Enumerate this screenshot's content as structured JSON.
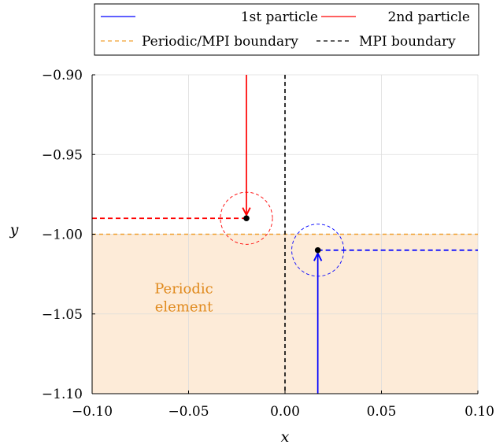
{
  "chart_data": {
    "type": "line",
    "xlabel": "x",
    "ylabel": "y",
    "xlim": [
      -0.1,
      0.1
    ],
    "ylim": [
      -1.1,
      -0.9
    ],
    "xticks": [
      -0.1,
      -0.05,
      0.0,
      0.05,
      0.1
    ],
    "yticks": [
      -1.1,
      -1.05,
      -1.0,
      -0.95,
      -0.9
    ],
    "xtick_labels": [
      "−0.10",
      "−0.05",
      "0.00",
      "0.05",
      "0.10"
    ],
    "ytick_labels": [
      "−1.10",
      "−1.05",
      "−1.00",
      "−0.95",
      "−0.90"
    ],
    "grid": true,
    "legend": {
      "placement": "top",
      "entries": [
        {
          "label": "1st particle",
          "color": "#0000ff",
          "style": "solid"
        },
        {
          "label": "2nd particle",
          "color": "#ff0000",
          "style": "solid"
        },
        {
          "label": "Periodic/MPI boundary",
          "color": "#f0a030",
          "style": "dashed"
        },
        {
          "label": "MPI boundary",
          "color": "#000000",
          "style": "dashed"
        }
      ]
    },
    "shaded_region": {
      "x": [
        -0.1,
        0.1
      ],
      "y": [
        -1.1,
        -1.0
      ],
      "color": "#fdebd8"
    },
    "annotation": {
      "lines": [
        "Periodic",
        "element"
      ],
      "x": -0.05,
      "y": -1.04,
      "color": "#e08a1e"
    },
    "boundaries": [
      {
        "name": "Periodic/MPI boundary",
        "orientation": "horizontal",
        "value": -1.0,
        "color": "#f0a030",
        "style": "dashed"
      },
      {
        "name": "MPI boundary",
        "orientation": "vertical",
        "value": 0.0,
        "color": "#000000",
        "style": "dashed"
      }
    ],
    "particles": [
      {
        "name": "1st particle",
        "color": "#0000ff",
        "position": [
          0.017,
          -1.01
        ],
        "radius": 0.0135,
        "trajectory": {
          "x": [
            0.017,
            0.017
          ],
          "y": [
            -1.1,
            -1.012
          ]
        },
        "projection": {
          "x": [
            0.017,
            0.1
          ],
          "y": [
            -1.01,
            -1.01
          ]
        }
      },
      {
        "name": "2nd particle",
        "color": "#ff0000",
        "position": [
          -0.02,
          -0.99
        ],
        "radius": 0.0135,
        "trajectory": {
          "x": [
            -0.02,
            -0.02
          ],
          "y": [
            -0.9,
            -0.988
          ]
        },
        "projection": {
          "x": [
            -0.1,
            -0.02
          ],
          "y": [
            -0.99,
            -0.99
          ]
        }
      }
    ]
  }
}
